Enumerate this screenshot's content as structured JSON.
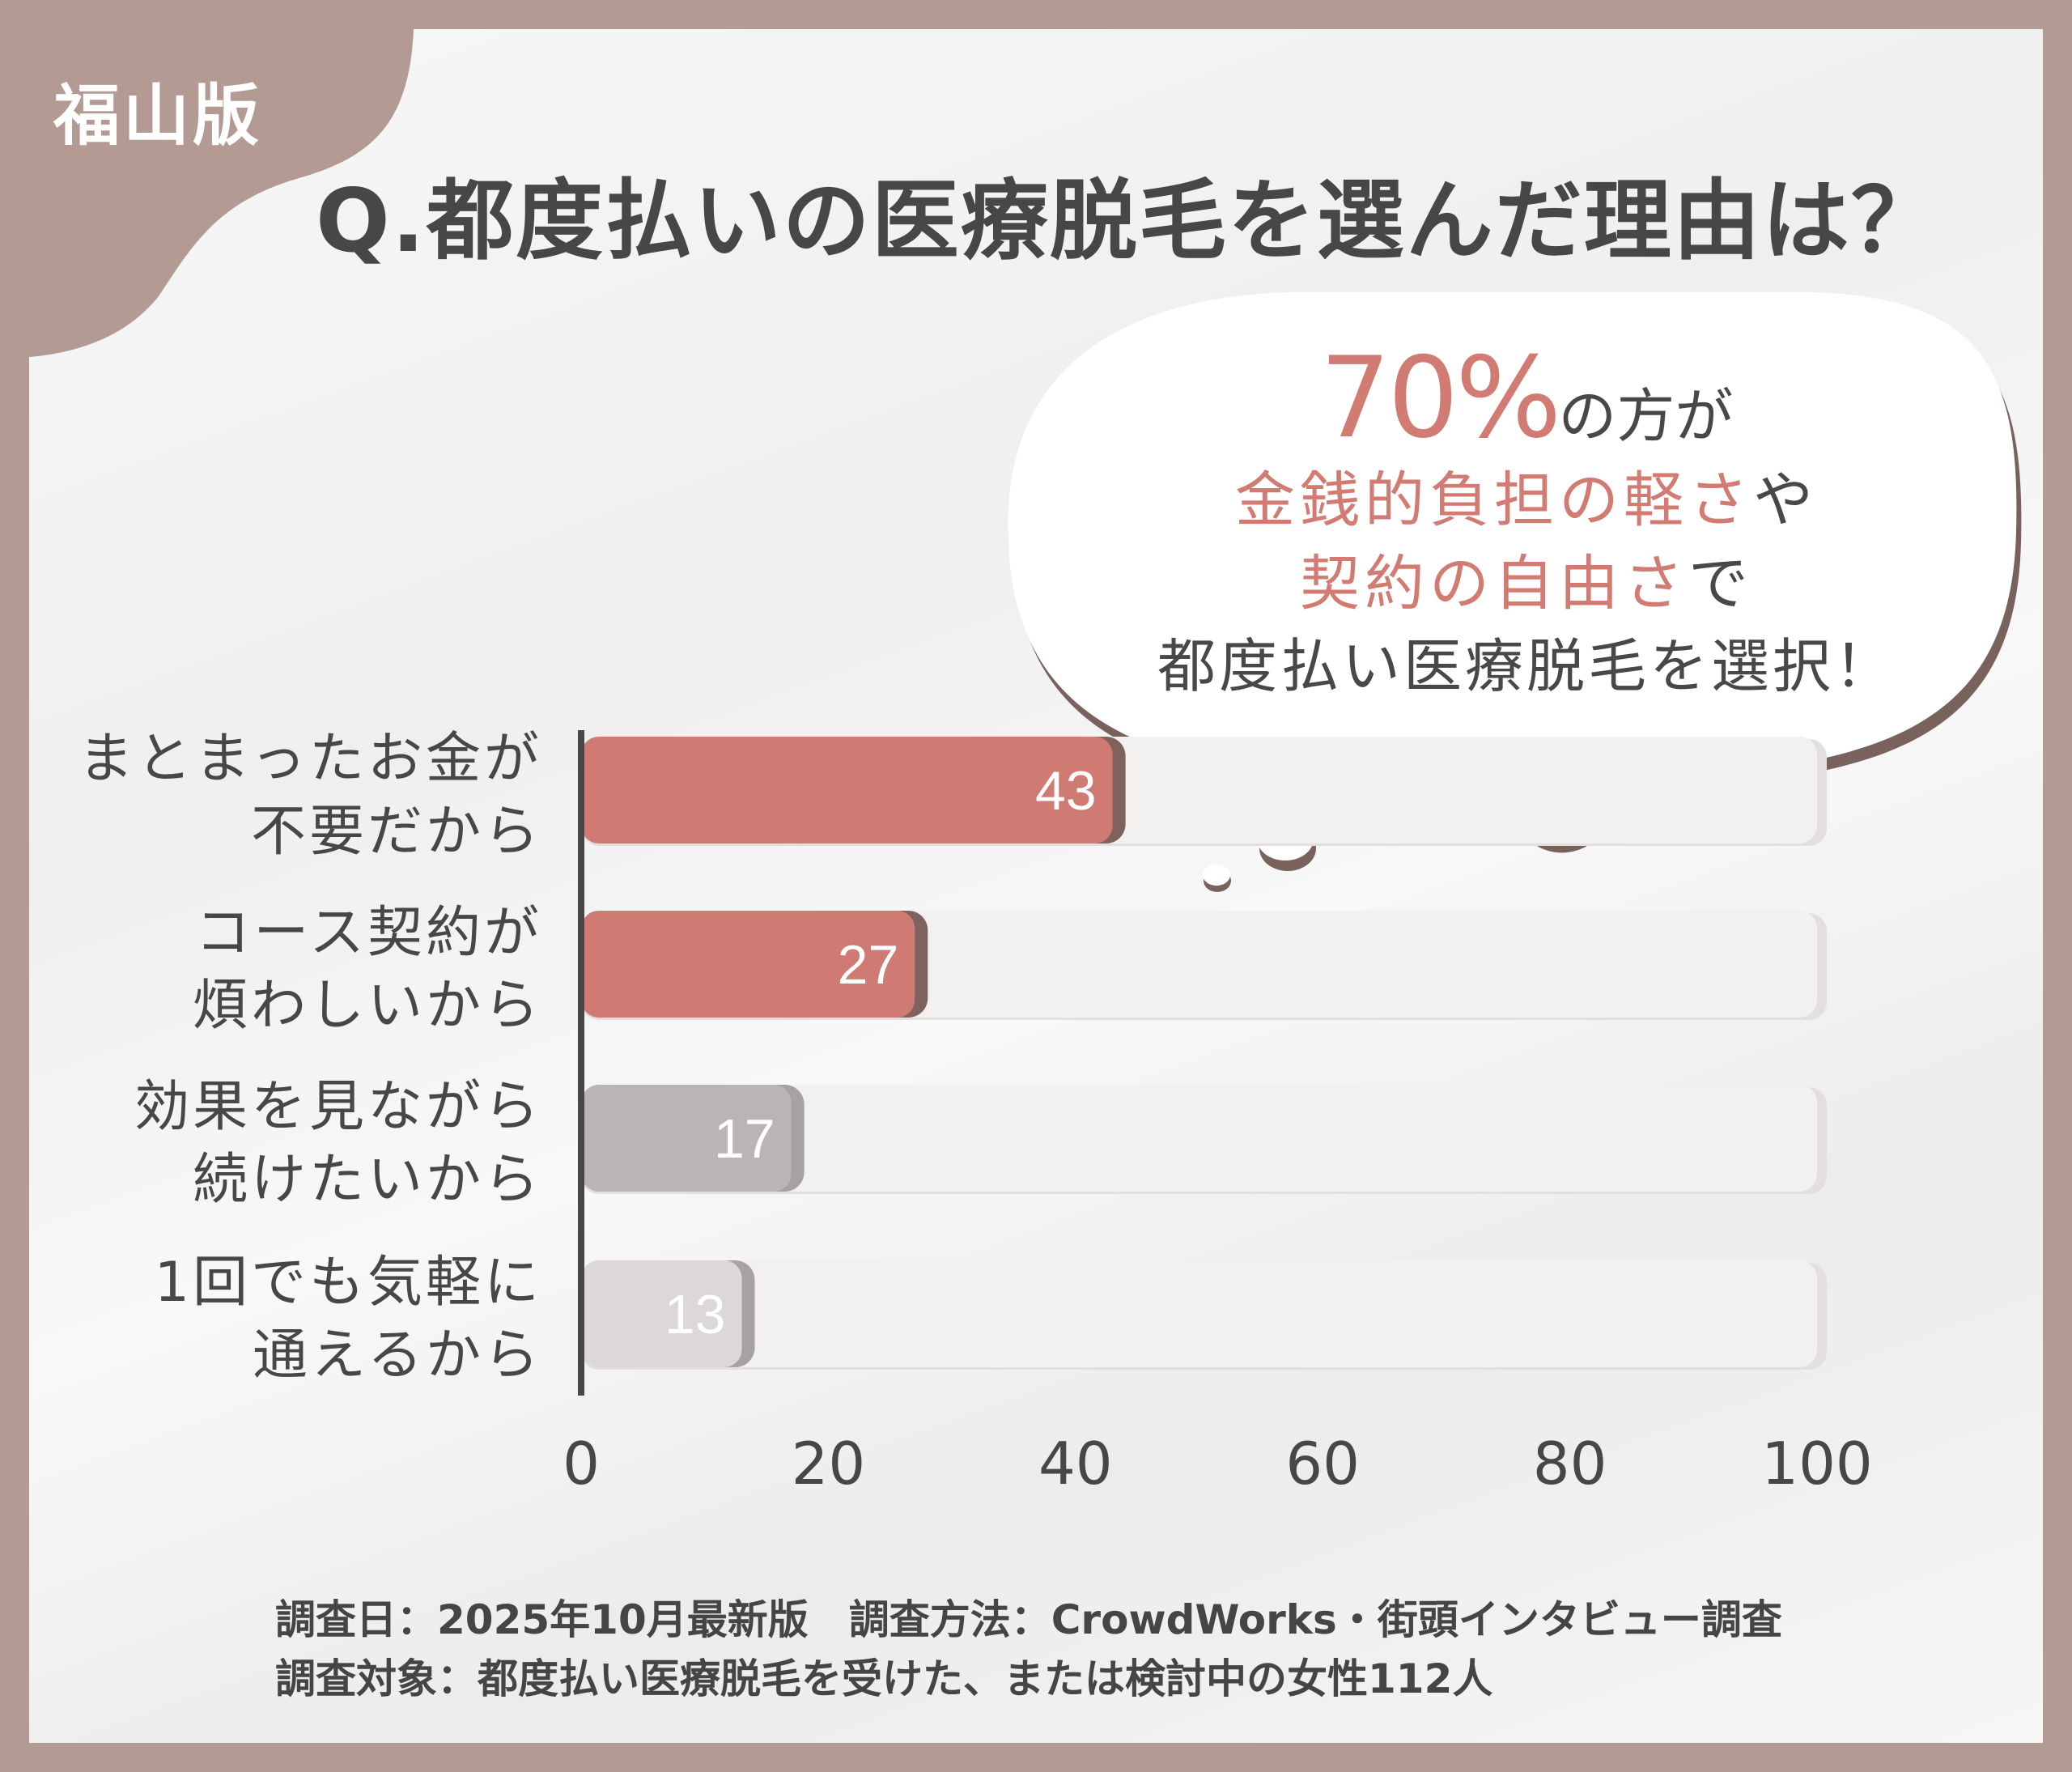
{
  "badge": "福山版",
  "title": "Q.都度払いの医療脱毛を選んだ理由は？",
  "callout": {
    "percent": "70%",
    "line1_rest": "の方が",
    "line2_highlight": "金銭的負担の軽さ",
    "line2_rest": "や",
    "line3_highlight": "契約の自由さ",
    "line3_rest": "で",
    "line4": "都度払い医療脱毛を選択！"
  },
  "chart_data": {
    "type": "bar",
    "orientation": "horizontal",
    "categories": [
      [
        "まとまったお金が",
        "不要だから"
      ],
      [
        "コース契約が",
        "煩わしいから"
      ],
      [
        "効果を見ながら",
        "続けたいから"
      ],
      [
        "1回でも気軽に",
        "通えるから"
      ]
    ],
    "values": [
      43,
      27,
      17,
      13
    ],
    "value_labels": [
      "43",
      "27",
      "17",
      "13"
    ],
    "bar_colors": [
      "#d07a74",
      "#d07a74",
      "#bab5b4",
      "#dcd8d8"
    ],
    "xlim": [
      0,
      100
    ],
    "xticks": [
      "0",
      "20",
      "40",
      "60",
      "80",
      "100"
    ],
    "xtick_values": [
      0,
      20,
      40,
      60,
      80,
      100
    ],
    "grid": false
  },
  "footer": {
    "line1": "調査日：2025年10月最新版　調査方法：CrowdWorks・街頭インタビュー調査",
    "line2": "調査対象：都度払い医療脱毛を受けた、または検討中の女性112人"
  },
  "colors": {
    "frame": "#b39b93",
    "accent": "#d27b73",
    "text": "#474747"
  }
}
